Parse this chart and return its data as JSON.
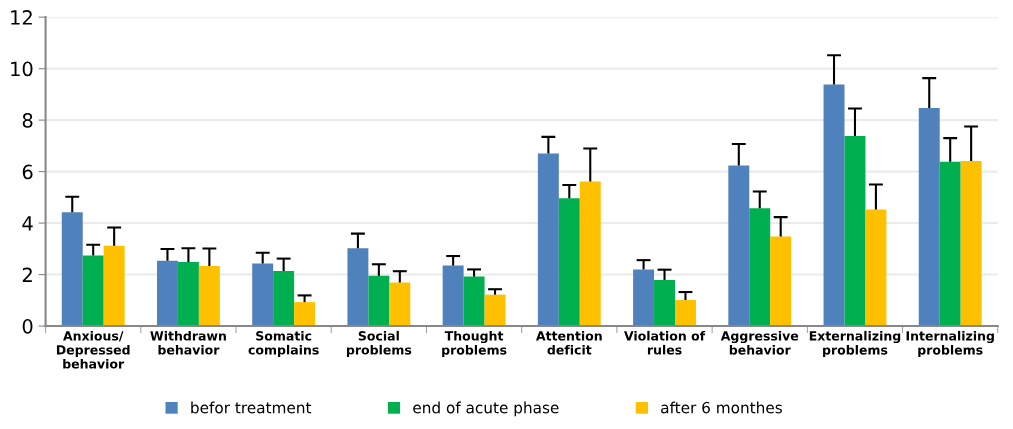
{
  "chart_data": {
    "type": "bar",
    "categories": [
      "Anxious/\nDepressed\nbehavior",
      "Withdrawn\nbehavior",
      "Somatic\ncomplains",
      "Social\nproblems",
      "Thought\nproblems",
      "Attention\ndeficit",
      "Violation of\nrules",
      "Aggressive\nbehavior",
      "Externalizing\nproblems",
      "Internalizing\nproblems"
    ],
    "series": [
      {
        "name": "befor treatment",
        "color": "#4f81bd",
        "values": [
          4.42,
          2.54,
          2.43,
          3.02,
          2.35,
          6.7,
          2.2,
          6.24,
          9.38,
          8.47
        ],
        "errors": [
          [
            4.42,
            5.02
          ],
          [
            2.54,
            2.99
          ],
          [
            2.43,
            2.85
          ],
          [
            3.02,
            3.59
          ],
          [
            2.35,
            2.72
          ],
          [
            6.7,
            7.35
          ],
          [
            2.2,
            2.56
          ],
          [
            6.24,
            7.07
          ],
          [
            9.38,
            10.52
          ],
          [
            8.47,
            9.63
          ]
        ]
      },
      {
        "name": "end of acute phase",
        "color": "#00b050",
        "values": [
          2.74,
          2.49,
          2.14,
          1.95,
          1.92,
          4.96,
          1.79,
          4.58,
          7.38,
          6.38
        ],
        "errors": [
          [
            2.74,
            3.16
          ],
          [
            2.49,
            3.02
          ],
          [
            2.14,
            2.62
          ],
          [
            1.95,
            2.4
          ],
          [
            1.92,
            2.2
          ],
          [
            4.96,
            5.48
          ],
          [
            1.79,
            2.19
          ],
          [
            4.58,
            5.23
          ],
          [
            7.38,
            8.45
          ],
          [
            6.38,
            7.3
          ]
        ]
      },
      {
        "name": "after 6 monthes",
        "color": "#ffc000",
        "values": [
          3.12,
          2.33,
          0.93,
          1.69,
          1.22,
          5.62,
          1.01,
          3.48,
          4.53,
          6.41
        ],
        "errors": [
          [
            3.12,
            3.83
          ],
          [
            2.33,
            3.01
          ],
          [
            0.93,
            1.19
          ],
          [
            1.69,
            2.13
          ],
          [
            1.22,
            1.43
          ],
          [
            5.62,
            6.9
          ],
          [
            1.01,
            1.32
          ],
          [
            3.48,
            4.23
          ],
          [
            4.53,
            5.5
          ],
          [
            6.41,
            7.75
          ]
        ]
      }
    ],
    "ylim": [
      0,
      12
    ],
    "yticks": [
      0,
      2,
      4,
      6,
      8,
      10,
      12
    ],
    "grid": "y",
    "legend": "bottom"
  }
}
